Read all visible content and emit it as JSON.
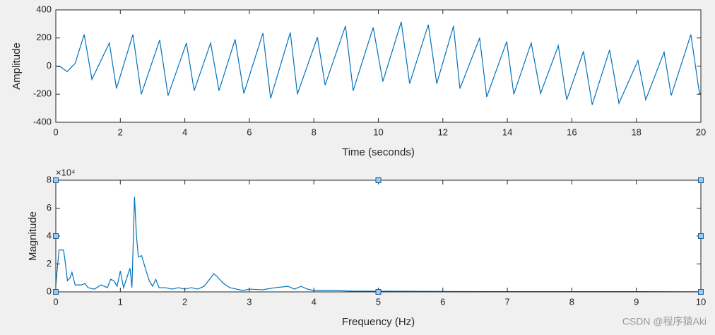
{
  "chart_data": [
    {
      "type": "line",
      "xlabel": "Time (seconds)",
      "ylabel": "Amplitude",
      "xlim": [
        0,
        20
      ],
      "ylim": [
        -400,
        400
      ],
      "xticks": [
        0,
        2,
        4,
        6,
        8,
        10,
        12,
        14,
        16,
        18,
        20
      ],
      "yticks": [
        -400,
        -200,
        0,
        200,
        400
      ],
      "color": "#0072bd",
      "x": [
        0,
        0.15,
        0.35,
        0.6,
        0.88,
        1.12,
        1.66,
        1.88,
        2.39,
        2.65,
        3.22,
        3.48,
        4.05,
        4.29,
        4.8,
        5.06,
        5.56,
        5.83,
        6.42,
        6.66,
        7.27,
        7.49,
        8.11,
        8.35,
        8.98,
        9.22,
        9.84,
        10.14,
        10.71,
        10.97,
        11.55,
        11.81,
        12.33,
        12.53,
        13.14,
        13.36,
        13.98,
        14.2,
        14.74,
        15.03,
        15.58,
        15.84,
        16.36,
        16.63,
        17.17,
        17.46,
        18.05,
        18.29,
        18.86,
        19.08,
        19.69,
        19.96,
        20
      ],
      "values": [
        0,
        -5,
        -40,
        20,
        225,
        -95,
        165,
        -160,
        225,
        -200,
        185,
        -210,
        165,
        -175,
        165,
        -175,
        190,
        -195,
        235,
        -230,
        240,
        -200,
        205,
        -135,
        285,
        -175,
        275,
        -110,
        315,
        -125,
        295,
        -125,
        285,
        -160,
        200,
        -220,
        175,
        -200,
        165,
        -195,
        145,
        -240,
        105,
        -275,
        115,
        -265,
        40,
        -240,
        100,
        -210,
        225,
        -200,
        -190
      ]
    },
    {
      "type": "line",
      "xlabel": "Frequency (Hz)",
      "ylabel": "Magnitude",
      "y_exponent": "×10⁴",
      "xlim": [
        0,
        10
      ],
      "ylim": [
        0,
        80000
      ],
      "xticks": [
        0,
        1,
        2,
        3,
        4,
        5,
        6,
        7,
        8,
        9,
        10
      ],
      "yticks": [
        {
          "value": 0,
          "label": "0"
        },
        {
          "value": 20000,
          "label": "2"
        },
        {
          "value": 40000,
          "label": "4"
        },
        {
          "value": 60000,
          "label": "6"
        },
        {
          "value": 80000,
          "label": "8"
        }
      ],
      "color": "#0072bd",
      "x": [
        0,
        0.05,
        0.12,
        0.15,
        0.18,
        0.22,
        0.25,
        0.3,
        0.4,
        0.45,
        0.5,
        0.6,
        0.7,
        0.75,
        0.8,
        0.85,
        0.9,
        0.95,
        1.0,
        1.05,
        1.1,
        1.15,
        1.18,
        1.22,
        1.25,
        1.28,
        1.33,
        1.4,
        1.45,
        1.5,
        1.55,
        1.6,
        1.7,
        1.8,
        1.9,
        2.0,
        2.1,
        2.2,
        2.3,
        2.4,
        2.45,
        2.5,
        2.6,
        2.7,
        2.8,
        2.9,
        3.0,
        3.2,
        3.4,
        3.6,
        3.7,
        3.8,
        3.9,
        4.0,
        4.3,
        4.6,
        5,
        6,
        7,
        8,
        9,
        10
      ],
      "values": [
        5000,
        30000,
        30000,
        20000,
        8000,
        10000,
        14000,
        5000,
        5000,
        6000,
        3000,
        2000,
        5000,
        4000,
        3000,
        9000,
        8000,
        4000,
        15000,
        3000,
        10000,
        17000,
        3000,
        68000,
        40000,
        25000,
        26000,
        15000,
        8000,
        4000,
        9000,
        3000,
        3000,
        2000,
        3000,
        2000,
        3000,
        2000,
        4000,
        10000,
        13000,
        11000,
        6000,
        3000,
        2000,
        1000,
        2000,
        1500,
        3000,
        4000,
        2000,
        4000,
        2000,
        1000,
        1000,
        500,
        500,
        300,
        200,
        200,
        200,
        100
      ]
    }
  ],
  "watermark": "CSDN @程序猿Aki"
}
